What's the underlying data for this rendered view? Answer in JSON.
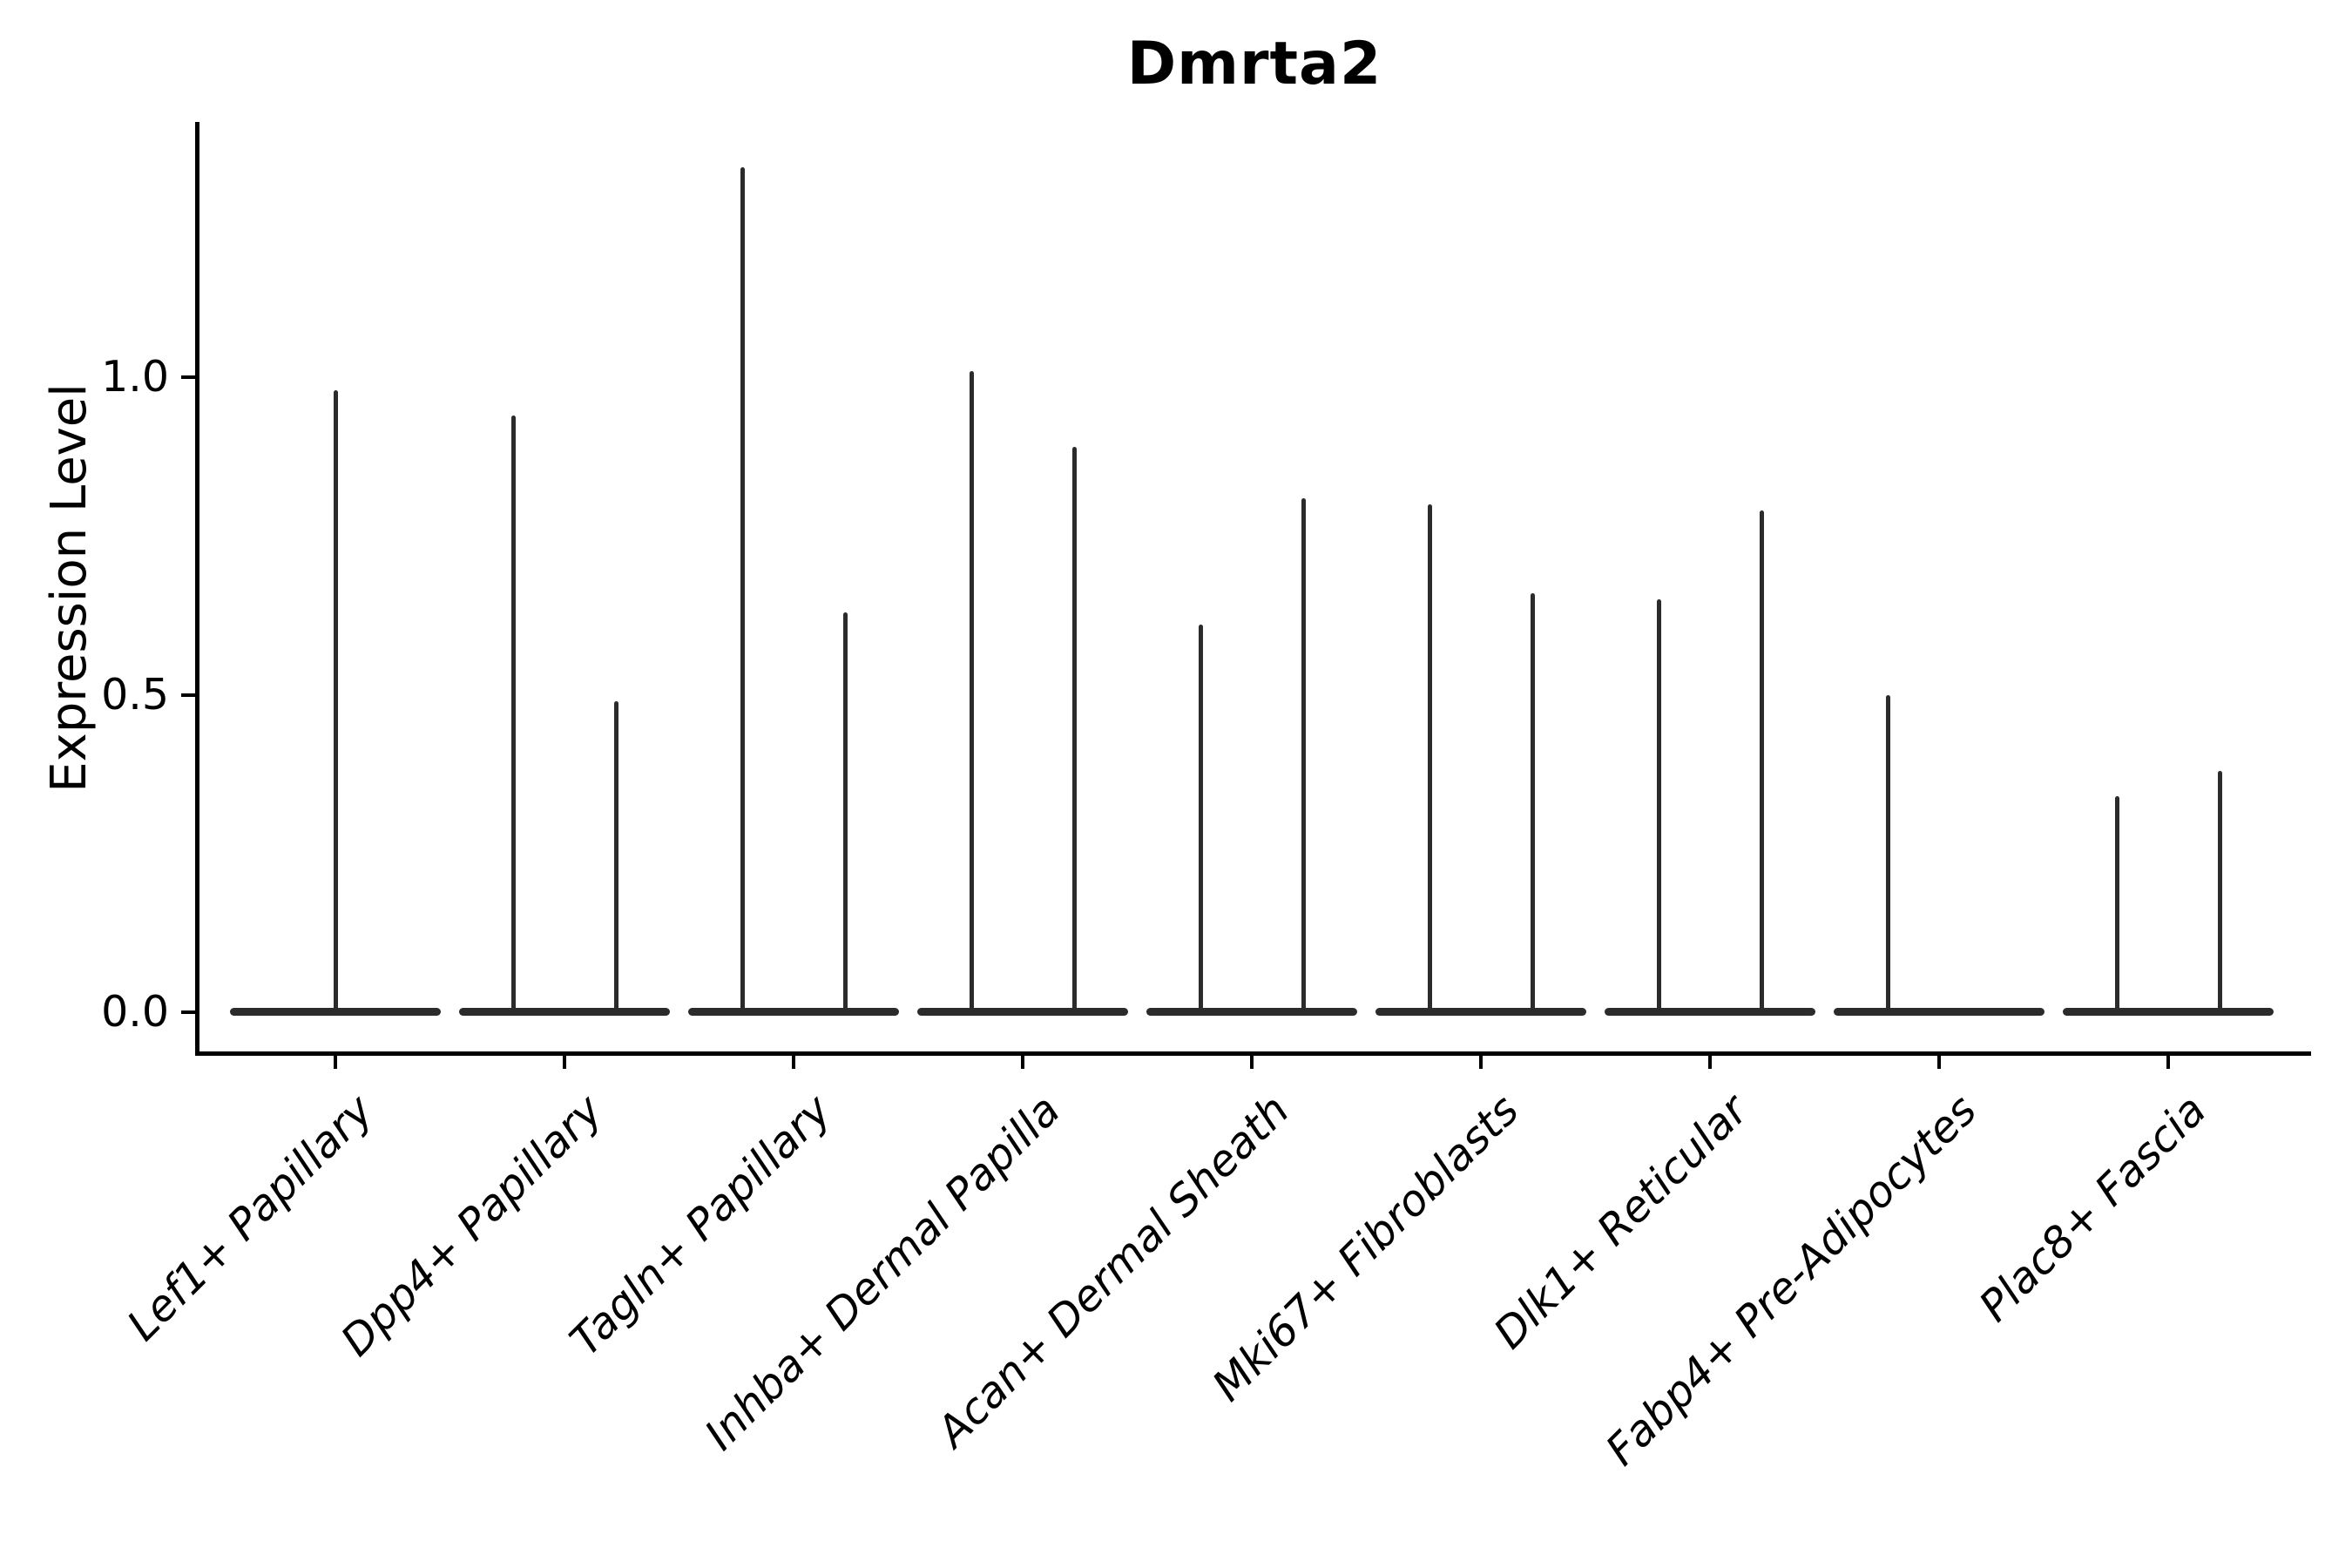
{
  "title": "Dmrta2",
  "y_axis": {
    "label": "Expression Level",
    "ticks": [
      {
        "label": "0.0",
        "value": 0.0
      },
      {
        "label": "0.5",
        "value": 0.5
      },
      {
        "label": "1.0",
        "value": 1.0
      }
    ]
  },
  "chart_data": {
    "type": "violin",
    "title": "Dmrta2",
    "xlabel": "",
    "ylabel": "Expression Level",
    "ylim": [
      -0.07,
      1.4
    ],
    "yticks": [
      0.0,
      0.5,
      1.0
    ],
    "grid": false,
    "legend": false,
    "violin_style": "needle-spike with flat base at zero",
    "categories": [
      "Lef1+ Papillary",
      "Dpp4+ Papillary",
      "Tagln+ Papillary",
      "Inhba+ Dermal Papilla",
      "Acan+ Dermal Sheath",
      "Mki67+ Fibroblasts",
      "Dlk1+ Reticular",
      "Fabp4+ Pre-Adipocytes",
      "Plac8+ Fascia"
    ],
    "violins": [
      {
        "category": "Lef1+ Papillary",
        "spikes": [
          {
            "position": "center",
            "max_expression": 0.98
          }
        ]
      },
      {
        "category": "Dpp4+ Papillary",
        "spikes": [
          {
            "position": "left",
            "max_expression": 0.94
          },
          {
            "position": "right",
            "max_expression": 0.49
          }
        ]
      },
      {
        "category": "Tagln+ Papillary",
        "spikes": [
          {
            "position": "left",
            "max_expression": 1.33
          },
          {
            "position": "right",
            "max_expression": 0.63
          }
        ]
      },
      {
        "category": "Inhba+ Dermal Papilla",
        "spikes": [
          {
            "position": "left",
            "max_expression": 1.01
          },
          {
            "position": "right",
            "max_expression": 0.89
          }
        ]
      },
      {
        "category": "Acan+ Dermal Sheath",
        "spikes": [
          {
            "position": "left",
            "max_expression": 0.61
          },
          {
            "position": "right",
            "max_expression": 0.81
          }
        ]
      },
      {
        "category": "Mki67+ Fibroblasts",
        "spikes": [
          {
            "position": "left",
            "max_expression": 0.8
          },
          {
            "position": "right",
            "max_expression": 0.66
          }
        ]
      },
      {
        "category": "Dlk1+ Reticular",
        "spikes": [
          {
            "position": "left",
            "max_expression": 0.65
          },
          {
            "position": "right",
            "max_expression": 0.79
          }
        ]
      },
      {
        "category": "Fabp4+ Pre-Adipocytes",
        "spikes": [
          {
            "position": "left",
            "max_expression": 0.5
          }
        ]
      },
      {
        "category": "Plac8+ Fascia",
        "spikes": [
          {
            "position": "left",
            "max_expression": 0.34
          },
          {
            "position": "right",
            "max_expression": 0.38
          }
        ]
      }
    ],
    "colors": {
      "violin": "#2b2b2b",
      "axis": "#000000",
      "background": "#ffffff"
    }
  }
}
